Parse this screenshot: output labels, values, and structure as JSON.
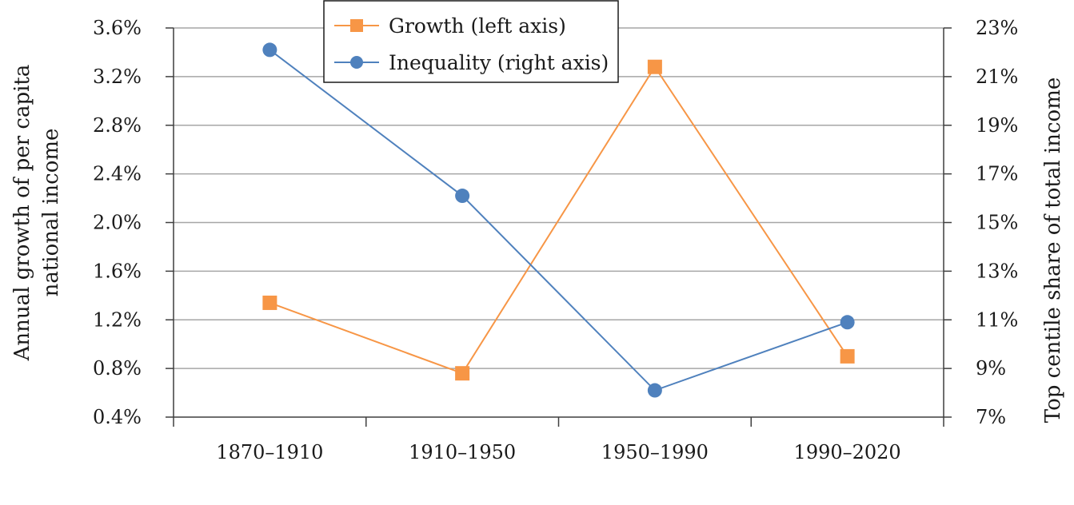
{
  "chart_data": {
    "type": "line",
    "title": "",
    "categories": [
      "1870–1910",
      "1910–1950",
      "1950–1990",
      "1990–2020"
    ],
    "y_left": {
      "label_lines": [
        "Annual growth of per capita",
        "national income"
      ],
      "range": [
        0.4,
        3.6
      ],
      "ticks": [
        "0.4%",
        "0.8%",
        "1.2%",
        "1.6%",
        "2.0%",
        "2.4%",
        "2.8%",
        "3.2%",
        "3.6%"
      ],
      "tick_values": [
        0.4,
        0.8,
        1.2,
        1.6,
        2.0,
        2.4,
        2.8,
        3.2,
        3.6
      ]
    },
    "y_right": {
      "label": "Top centile share of total income",
      "range": [
        7,
        23
      ],
      "ticks": [
        "7%",
        "9%",
        "11%",
        "13%",
        "15%",
        "17%",
        "19%",
        "21%",
        "23%"
      ],
      "tick_values": [
        7,
        9,
        11,
        13,
        15,
        17,
        19,
        21,
        23
      ]
    },
    "grid": true,
    "legend_position": "top-center",
    "series": [
      {
        "name": "Growth (left axis)",
        "axis": "left",
        "marker": "square",
        "color": "#f79646",
        "values": [
          1.34,
          0.76,
          3.28,
          0.9
        ]
      },
      {
        "name": "Inequality (right axis)",
        "axis": "right",
        "marker": "circle",
        "color": "#4f81bd",
        "values": [
          22.1,
          16.1,
          8.1,
          10.9
        ]
      }
    ]
  }
}
